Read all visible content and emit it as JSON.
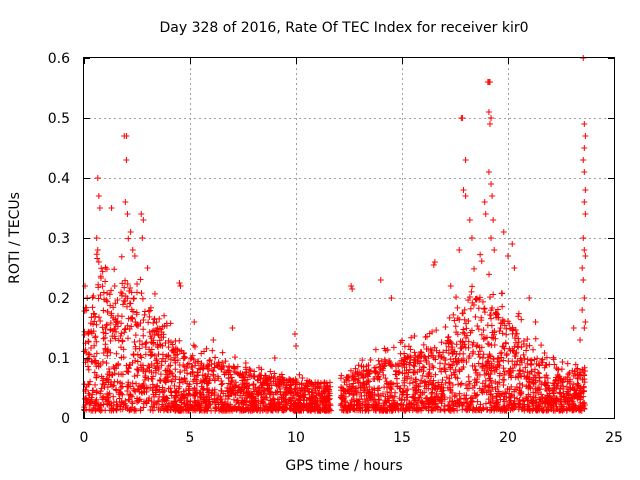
{
  "chart_data": {
    "type": "scatter",
    "title": "Day 328 of 2016, Rate Of TEC Index for receiver kir0",
    "xlabel": "GPS time / hours",
    "ylabel": "ROTI / TECUs",
    "xlim": [
      0,
      25
    ],
    "ylim": [
      0,
      0.6
    ],
    "grid": true,
    "marker": "+",
    "series_color": "#ff0000",
    "x_ticks": [
      {
        "value": 0,
        "label": "0"
      },
      {
        "value": 5,
        "label": "5"
      },
      {
        "value": 10,
        "label": "10"
      },
      {
        "value": 15,
        "label": "15"
      },
      {
        "value": 20,
        "label": "20"
      },
      {
        "value": 25,
        "label": "25"
      }
    ],
    "y_ticks": [
      {
        "value": 0,
        "label": "0"
      },
      {
        "value": 0.1,
        "label": "0.1"
      },
      {
        "value": 0.2,
        "label": "0.2"
      },
      {
        "value": 0.3,
        "label": "0.3"
      },
      {
        "value": 0.4,
        "label": "0.4"
      },
      {
        "value": 0.5,
        "label": "0.5"
      },
      {
        "value": 0.6,
        "label": "0.6"
      }
    ],
    "envelope": [
      [
        0.0,
        0.13
      ],
      [
        0.3,
        0.14
      ],
      [
        0.6,
        0.2
      ],
      [
        0.8,
        0.23
      ],
      [
        1.0,
        0.18
      ],
      [
        1.3,
        0.16
      ],
      [
        1.6,
        0.19
      ],
      [
        2.0,
        0.21
      ],
      [
        2.3,
        0.2
      ],
      [
        2.6,
        0.19
      ],
      [
        2.9,
        0.17
      ],
      [
        3.3,
        0.15
      ],
      [
        3.8,
        0.12
      ],
      [
        4.2,
        0.11
      ],
      [
        4.6,
        0.1
      ],
      [
        5.0,
        0.09
      ],
      [
        5.5,
        0.08
      ],
      [
        6.0,
        0.08
      ],
      [
        6.6,
        0.075
      ],
      [
        7.2,
        0.07
      ],
      [
        8.0,
        0.06
      ],
      [
        8.8,
        0.055
      ],
      [
        9.5,
        0.05
      ],
      [
        10.2,
        0.05
      ],
      [
        11.0,
        0.045
      ],
      [
        11.7,
        0.045
      ],
      [
        12.2,
        0.05
      ],
      [
        12.8,
        0.06
      ],
      [
        13.5,
        0.075
      ],
      [
        14.2,
        0.085
      ],
      [
        15.0,
        0.09
      ],
      [
        15.8,
        0.1
      ],
      [
        16.5,
        0.1
      ],
      [
        17.2,
        0.12
      ],
      [
        17.8,
        0.16
      ],
      [
        18.2,
        0.2
      ],
      [
        18.7,
        0.19
      ],
      [
        19.1,
        0.17
      ],
      [
        19.6,
        0.15
      ],
      [
        20.1,
        0.14
      ],
      [
        20.6,
        0.12
      ],
      [
        21.2,
        0.1
      ],
      [
        21.8,
        0.08
      ],
      [
        22.4,
        0.07
      ],
      [
        23.0,
        0.06
      ],
      [
        23.6,
        0.07
      ]
    ],
    "gaps": [
      [
        11.65,
        12.1
      ]
    ],
    "x_end": 23.65,
    "outliers": [
      [
        0.05,
        0.22
      ],
      [
        0.1,
        0.18
      ],
      [
        0.15,
        0.2
      ],
      [
        0.65,
        0.4
      ],
      [
        0.7,
        0.37
      ],
      [
        0.75,
        0.35
      ],
      [
        0.6,
        0.3
      ],
      [
        0.65,
        0.28
      ],
      [
        0.7,
        0.26
      ],
      [
        1.3,
        0.35
      ],
      [
        1.45,
        0.22
      ],
      [
        1.9,
        0.47
      ],
      [
        2.0,
        0.47
      ],
      [
        2.0,
        0.43
      ],
      [
        1.95,
        0.36
      ],
      [
        2.05,
        0.34
      ],
      [
        2.2,
        0.31
      ],
      [
        2.3,
        0.28
      ],
      [
        2.4,
        0.27
      ],
      [
        2.7,
        0.34
      ],
      [
        2.8,
        0.33
      ],
      [
        2.75,
        0.3
      ],
      [
        3.0,
        0.25
      ],
      [
        4.5,
        0.225
      ],
      [
        4.55,
        0.22
      ],
      [
        5.2,
        0.16
      ],
      [
        6.1,
        0.13
      ],
      [
        7.0,
        0.15
      ],
      [
        9.0,
        0.1
      ],
      [
        9.95,
        0.14
      ],
      [
        10.0,
        0.12
      ],
      [
        12.6,
        0.22
      ],
      [
        12.65,
        0.215
      ],
      [
        14.0,
        0.23
      ],
      [
        14.5,
        0.2
      ],
      [
        16.5,
        0.255
      ],
      [
        16.55,
        0.26
      ],
      [
        17.3,
        0.22
      ],
      [
        17.7,
        0.28
      ],
      [
        17.8,
        0.5
      ],
      [
        17.85,
        0.5
      ],
      [
        18.0,
        0.43
      ],
      [
        17.9,
        0.38
      ],
      [
        18.0,
        0.37
      ],
      [
        18.2,
        0.33
      ],
      [
        18.3,
        0.3
      ],
      [
        18.9,
        0.36
      ],
      [
        18.95,
        0.34
      ],
      [
        19.05,
        0.56
      ],
      [
        19.1,
        0.56
      ],
      [
        19.15,
        0.56
      ],
      [
        19.1,
        0.51
      ],
      [
        19.2,
        0.5
      ],
      [
        19.15,
        0.49
      ],
      [
        19.1,
        0.41
      ],
      [
        19.2,
        0.39
      ],
      [
        19.25,
        0.37
      ],
      [
        19.3,
        0.33
      ],
      [
        19.2,
        0.3
      ],
      [
        19.35,
        0.28
      ],
      [
        19.8,
        0.31
      ],
      [
        20.2,
        0.29
      ],
      [
        20.0,
        0.27
      ],
      [
        20.3,
        0.25
      ],
      [
        21.0,
        0.2
      ],
      [
        21.3,
        0.16
      ],
      [
        23.1,
        0.15
      ],
      [
        23.4,
        0.13
      ],
      [
        23.55,
        0.6
      ],
      [
        23.6,
        0.49
      ],
      [
        23.65,
        0.47
      ],
      [
        23.6,
        0.45
      ],
      [
        23.55,
        0.43
      ],
      [
        23.6,
        0.41
      ],
      [
        23.65,
        0.38
      ],
      [
        23.6,
        0.36
      ],
      [
        23.65,
        0.34
      ],
      [
        23.55,
        0.3
      ],
      [
        23.6,
        0.28
      ],
      [
        23.65,
        0.27
      ],
      [
        23.5,
        0.25
      ],
      [
        23.55,
        0.23
      ],
      [
        23.6,
        0.2
      ],
      [
        23.5,
        0.18
      ],
      [
        23.65,
        0.16
      ],
      [
        23.6,
        0.15
      ]
    ]
  }
}
